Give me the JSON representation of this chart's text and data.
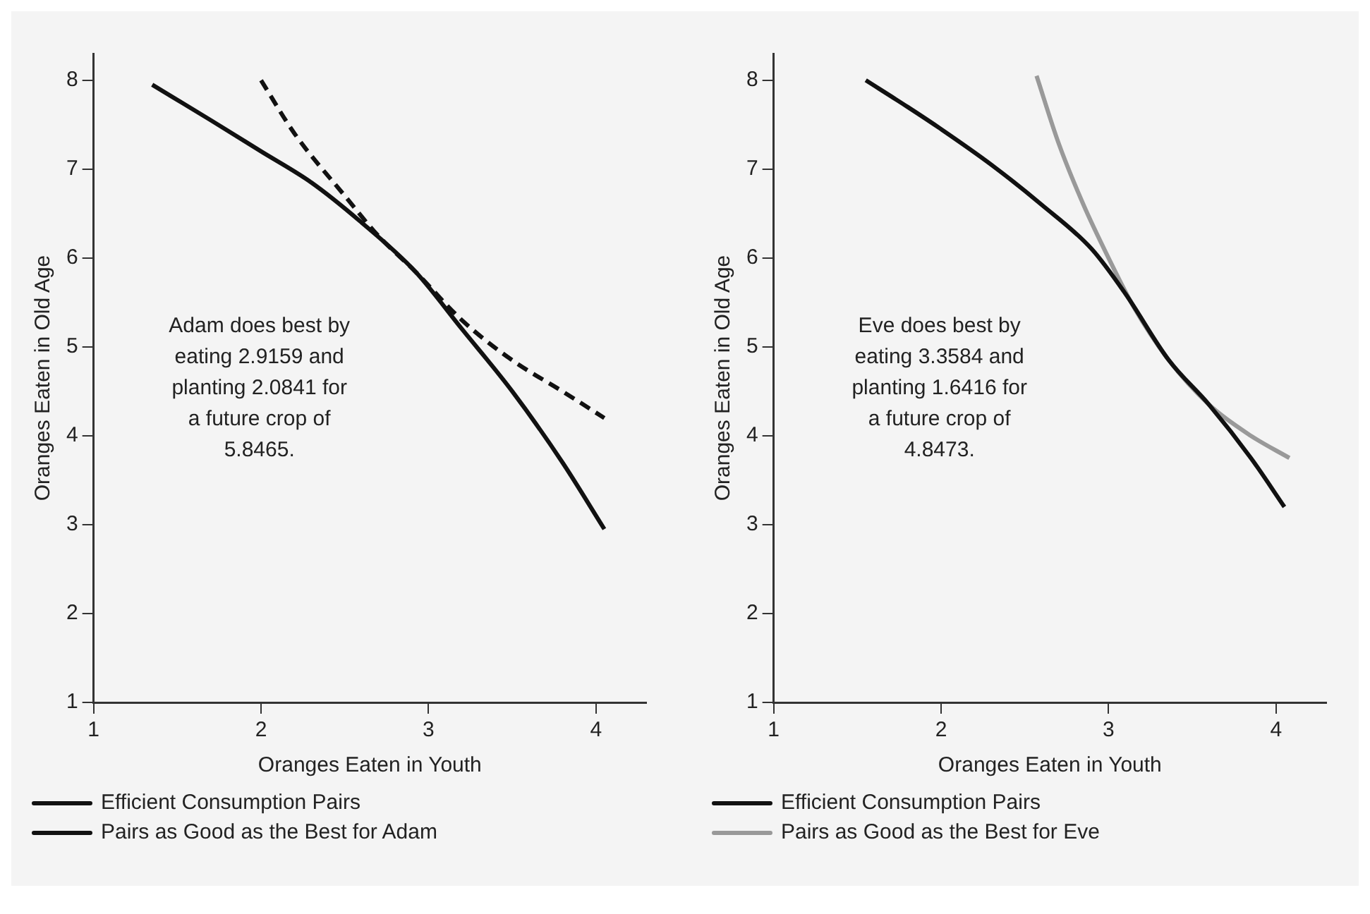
{
  "chart_data": [
    {
      "type": "line",
      "xlabel": "Oranges Eaten in Youth",
      "ylabel": "Oranges Eaten in Old Age",
      "annotations": [
        "Adam does best by eating 2.9159 and planting 2.0841 for a future crop of 5.8465."
      ],
      "xlim": [
        1,
        4.3
      ],
      "ylim": [
        1,
        8.3
      ],
      "xticks": [
        1,
        2,
        3,
        4
      ],
      "yticks": [
        1,
        2,
        3,
        4,
        5,
        6,
        7,
        8
      ],
      "grid": false,
      "legend": "bottom",
      "marker": "none",
      "series": [
        {
          "name": "Efficient Consumption Pairs",
          "color": "#111111",
          "line_style": "solid",
          "x": [
            1.35,
            1.7,
            2,
            2.3,
            2.6,
            2.92,
            3.2,
            3.5,
            3.8,
            4.05
          ],
          "values": [
            7.95,
            7.55,
            7.2,
            6.85,
            6.4,
            5.85,
            5.2,
            4.5,
            3.7,
            2.95
          ]
        },
        {
          "name": "Pairs as Good as the Best for Adam",
          "color": "#111111",
          "line_style": "dashed",
          "x": [
            2,
            2.2,
            2.5,
            2.7,
            2.92,
            3.2,
            3.5,
            3.8,
            4.05
          ],
          "values": [
            8,
            7.4,
            6.7,
            6.25,
            5.85,
            5.3,
            4.85,
            4.5,
            4.2
          ]
        }
      ]
    },
    {
      "type": "line",
      "xlabel": "Oranges Eaten in Youth",
      "ylabel": "Oranges Eaten in Old Age",
      "annotations": [
        "Eve does best by eating 3.3584 and planting 1.6416 for a future crop of 4.8473."
      ],
      "xlim": [
        1,
        4.3
      ],
      "ylim": [
        1,
        8.3
      ],
      "xticks": [
        1,
        2,
        3,
        4
      ],
      "yticks": [
        1,
        2,
        3,
        4,
        5,
        6,
        7,
        8
      ],
      "grid": false,
      "legend": "bottom",
      "marker": "none",
      "series": [
        {
          "name": "Efficient Consumption Pairs",
          "color": "#111111",
          "line_style": "solid",
          "x": [
            1.55,
            1.8,
            2,
            2.3,
            2.6,
            2.9,
            3.1,
            3.36,
            3.6,
            3.85,
            4.05
          ],
          "values": [
            8,
            7.7,
            7.45,
            7.05,
            6.6,
            6.1,
            5.6,
            4.85,
            4.35,
            3.75,
            3.2
          ]
        },
        {
          "name": "Pairs as Good as the Best for Eve",
          "color": "#999999",
          "line_style": "solid",
          "x": [
            2.57,
            2.7,
            2.85,
            3,
            3.15,
            3.36,
            3.6,
            3.85,
            4.08
          ],
          "values": [
            8.05,
            7.3,
            6.6,
            6,
            5.45,
            4.85,
            4.35,
            4,
            3.75
          ]
        }
      ]
    }
  ]
}
